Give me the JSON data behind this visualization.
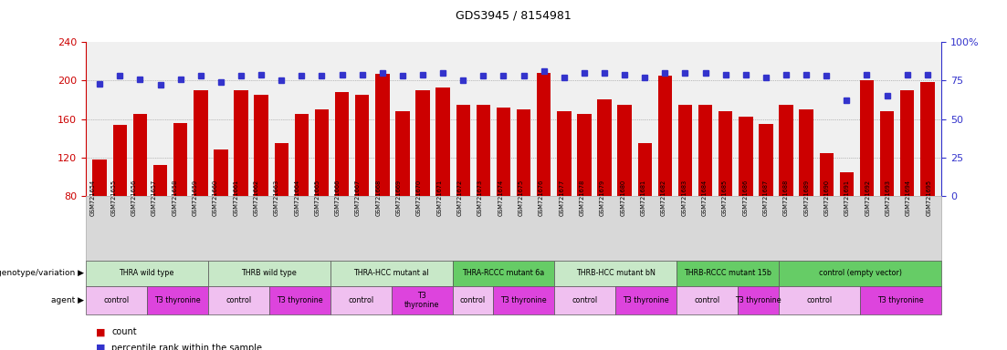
{
  "title": "GDS3945 / 8154981",
  "samples": [
    "GSM721654",
    "GSM721655",
    "GSM721656",
    "GSM721657",
    "GSM721658",
    "GSM721659",
    "GSM721660",
    "GSM721661",
    "GSM721662",
    "GSM721663",
    "GSM721664",
    "GSM721665",
    "GSM721666",
    "GSM721667",
    "GSM721668",
    "GSM721669",
    "GSM721670",
    "GSM721671",
    "GSM721672",
    "GSM721673",
    "GSM721674",
    "GSM721675",
    "GSM721676",
    "GSM721677",
    "GSM721678",
    "GSM721679",
    "GSM721680",
    "GSM721681",
    "GSM721682",
    "GSM721683",
    "GSM721684",
    "GSM721685",
    "GSM721686",
    "GSM721687",
    "GSM721688",
    "GSM721689",
    "GSM721690",
    "GSM721691",
    "GSM721692",
    "GSM721693",
    "GSM721694",
    "GSM721695"
  ],
  "counts": [
    118,
    154,
    165,
    112,
    156,
    190,
    128,
    190,
    185,
    135,
    165,
    170,
    188,
    185,
    207,
    168,
    190,
    193,
    175,
    175,
    172,
    170,
    208,
    168,
    165,
    180,
    175,
    135,
    205,
    175,
    175,
    168,
    162,
    155,
    175,
    170,
    125,
    105,
    200,
    168,
    190,
    198
  ],
  "percentile_ranks": [
    73,
    78,
    76,
    72,
    76,
    78,
    74,
    78,
    79,
    75,
    78,
    78,
    79,
    79,
    80,
    78,
    79,
    80,
    75,
    78,
    78,
    78,
    81,
    77,
    80,
    80,
    79,
    77,
    80,
    80,
    80,
    79,
    79,
    77,
    79,
    79,
    78,
    62,
    79,
    65,
    79,
    79
  ],
  "ylim_left": [
    80,
    240
  ],
  "ylim_right": [
    0,
    100
  ],
  "yticks_left": [
    80,
    120,
    160,
    200,
    240
  ],
  "yticks_right": [
    0,
    25,
    50,
    75,
    100
  ],
  "yticklabels_right": [
    "0",
    "25",
    "50",
    "75",
    "100%"
  ],
  "bar_color": "#cc0000",
  "dot_color": "#3333cc",
  "grid_color": "#888888",
  "background_color": "#ffffff",
  "plot_bg": "#f0f0f0",
  "label_bg": "#d8d8d8",
  "genotype_groups": [
    {
      "label": "THRA wild type",
      "start": 0,
      "end": 5,
      "color": "#c8e8c8"
    },
    {
      "label": "THRB wild type",
      "start": 6,
      "end": 11,
      "color": "#c8e8c8"
    },
    {
      "label": "THRA-HCC mutant al",
      "start": 12,
      "end": 17,
      "color": "#c8e8c8"
    },
    {
      "label": "THRA-RCCC mutant 6a",
      "start": 18,
      "end": 22,
      "color": "#66cc66"
    },
    {
      "label": "THRB-HCC mutant bN",
      "start": 23,
      "end": 28,
      "color": "#c8e8c8"
    },
    {
      "label": "THRB-RCCC mutant 15b",
      "start": 29,
      "end": 33,
      "color": "#66cc66"
    },
    {
      "label": "control (empty vector)",
      "start": 34,
      "end": 41,
      "color": "#66cc66"
    }
  ],
  "agent_groups": [
    {
      "label": "control",
      "start": 0,
      "end": 2,
      "color": "#f0c0f0"
    },
    {
      "label": "T3 thyronine",
      "start": 3,
      "end": 5,
      "color": "#dd44dd"
    },
    {
      "label": "control",
      "start": 6,
      "end": 8,
      "color": "#f0c0f0"
    },
    {
      "label": "T3 thyronine",
      "start": 9,
      "end": 11,
      "color": "#dd44dd"
    },
    {
      "label": "control",
      "start": 12,
      "end": 14,
      "color": "#f0c0f0"
    },
    {
      "label": "T3\nthyronine",
      "start": 15,
      "end": 17,
      "color": "#dd44dd"
    },
    {
      "label": "control",
      "start": 18,
      "end": 19,
      "color": "#f0c0f0"
    },
    {
      "label": "T3 thyronine",
      "start": 20,
      "end": 22,
      "color": "#dd44dd"
    },
    {
      "label": "control",
      "start": 23,
      "end": 25,
      "color": "#f0c0f0"
    },
    {
      "label": "T3 thyronine",
      "start": 26,
      "end": 28,
      "color": "#dd44dd"
    },
    {
      "label": "control",
      "start": 29,
      "end": 31,
      "color": "#f0c0f0"
    },
    {
      "label": "T3 thyronine",
      "start": 32,
      "end": 33,
      "color": "#dd44dd"
    },
    {
      "label": "control",
      "start": 34,
      "end": 37,
      "color": "#f0c0f0"
    },
    {
      "label": "T3 thyronine",
      "start": 38,
      "end": 41,
      "color": "#dd44dd"
    }
  ],
  "ylabel_left_color": "#cc0000",
  "ylabel_right_color": "#3333cc"
}
